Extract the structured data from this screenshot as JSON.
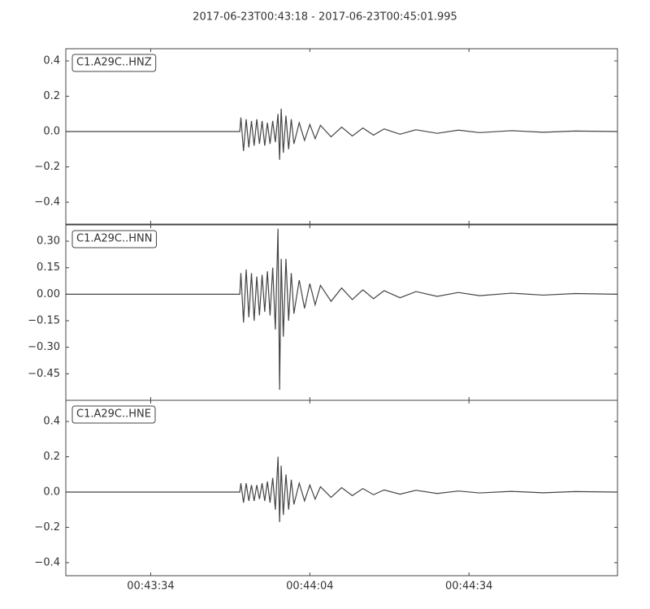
{
  "title": "2017-06-23T00:43:18  -  2017-06-23T00:45:01.995",
  "chart_data": [
    {
      "type": "line",
      "x": [
        0,
        32.8,
        33,
        33.5,
        34,
        34.5,
        35,
        35.5,
        36,
        36.5,
        37,
        37.5,
        38,
        38.5,
        39,
        39.5,
        40,
        40.3,
        40.6,
        41,
        41.5,
        42,
        42.5,
        43,
        44,
        45,
        46,
        47,
        48,
        50,
        52,
        54,
        56,
        58,
        60,
        63,
        66,
        70,
        74,
        78,
        84,
        90,
        96,
        103.995
      ],
      "series": [
        {
          "name": "C1.A29C..HNZ",
          "color": "#444444",
          "values": [
            0,
            0,
            0.08,
            -0.11,
            0.07,
            -0.09,
            0.06,
            -0.08,
            0.07,
            -0.07,
            0.06,
            -0.08,
            0.05,
            -0.07,
            0.06,
            -0.06,
            0.1,
            -0.16,
            0.13,
            -0.12,
            0.09,
            -0.1,
            0.07,
            -0.07,
            0.05,
            -0.05,
            0.04,
            -0.04,
            0.035,
            -0.03,
            0.025,
            -0.025,
            0.02,
            -0.02,
            0.015,
            -0.015,
            0.01,
            -0.01,
            0.008,
            -0.006,
            0.005,
            -0.004,
            0.003,
            0
          ]
        }
      ],
      "xlim": [
        0,
        103.995
      ],
      "ylim": [
        -0.524,
        0.469
      ],
      "yticks": [
        {
          "value": -0.4,
          "label": "−0.4"
        },
        {
          "value": -0.2,
          "label": "−0.2"
        },
        {
          "value": 0,
          "label": "0.0"
        },
        {
          "value": 0.2,
          "label": "0.2"
        },
        {
          "value": 0.4,
          "label": "0.4"
        }
      ]
    },
    {
      "type": "line",
      "x": [
        0,
        32.8,
        33,
        33.5,
        34,
        34.5,
        35,
        35.5,
        36,
        36.5,
        37,
        37.5,
        38,
        38.5,
        39,
        39.5,
        40,
        40.3,
        40.6,
        41,
        41.5,
        42,
        42.5,
        43,
        44,
        45,
        46,
        47,
        48,
        50,
        52,
        54,
        56,
        58,
        60,
        63,
        66,
        70,
        74,
        78,
        84,
        90,
        96,
        103.995
      ],
      "series": [
        {
          "name": "C1.A29C..HNN",
          "color": "#444444",
          "values": [
            0,
            0,
            0.12,
            -0.16,
            0.14,
            -0.13,
            0.12,
            -0.15,
            0.1,
            -0.12,
            0.11,
            -0.1,
            0.13,
            -0.12,
            0.15,
            -0.2,
            0.37,
            -0.54,
            0.2,
            -0.24,
            0.2,
            -0.15,
            0.12,
            -0.11,
            0.08,
            -0.08,
            0.06,
            -0.06,
            0.05,
            -0.04,
            0.035,
            -0.03,
            0.025,
            -0.025,
            0.02,
            -0.02,
            0.015,
            -0.012,
            0.01,
            -0.008,
            0.006,
            -0.005,
            0.004,
            0
          ]
        }
      ],
      "xlim": [
        0,
        103.995
      ],
      "ylim": [
        -0.6,
        0.392
      ],
      "yticks": [
        {
          "value": -0.45,
          "label": "−0.45"
        },
        {
          "value": -0.3,
          "label": "−0.30"
        },
        {
          "value": -0.15,
          "label": "−0.15"
        },
        {
          "value": 0,
          "label": "0.00"
        },
        {
          "value": 0.15,
          "label": "0.15"
        },
        {
          "value": 0.3,
          "label": "0.30"
        }
      ]
    },
    {
      "type": "line",
      "x": [
        0,
        32.8,
        33,
        33.5,
        34,
        34.5,
        35,
        35.5,
        36,
        36.5,
        37,
        37.5,
        38,
        38.5,
        39,
        39.5,
        40,
        40.3,
        40.6,
        41,
        41.5,
        42,
        42.5,
        43,
        44,
        45,
        46,
        47,
        48,
        50,
        52,
        54,
        56,
        58,
        60,
        63,
        66,
        70,
        74,
        78,
        84,
        90,
        96,
        103.995
      ],
      "series": [
        {
          "name": "C1.A29C..HNE",
          "color": "#444444",
          "values": [
            0,
            0,
            0.05,
            -0.06,
            0.05,
            -0.05,
            0.04,
            -0.05,
            0.04,
            -0.04,
            0.05,
            -0.05,
            0.06,
            -0.06,
            0.08,
            -0.1,
            0.2,
            -0.17,
            0.15,
            -0.13,
            0.1,
            -0.1,
            0.07,
            -0.07,
            0.05,
            -0.05,
            0.04,
            -0.04,
            0.03,
            -0.03,
            0.025,
            -0.02,
            0.02,
            -0.015,
            0.012,
            -0.012,
            0.01,
            -0.008,
            0.006,
            -0.005,
            0.004,
            -0.004,
            0.003,
            0
          ]
        }
      ],
      "xlim": [
        0,
        103.995
      ],
      "ylim": [
        -0.474,
        0.52
      ],
      "yticks": [
        {
          "value": -0.4,
          "label": "−0.4"
        },
        {
          "value": -0.2,
          "label": "−0.2"
        },
        {
          "value": 0,
          "label": "0.0"
        },
        {
          "value": 0.2,
          "label": "0.2"
        },
        {
          "value": 0.4,
          "label": "0.4"
        }
      ],
      "xticks": [
        {
          "value": 16,
          "label": "00:43:34"
        },
        {
          "value": 46,
          "label": "00:44:04"
        },
        {
          "value": 76,
          "label": "00:44:34"
        }
      ]
    }
  ]
}
